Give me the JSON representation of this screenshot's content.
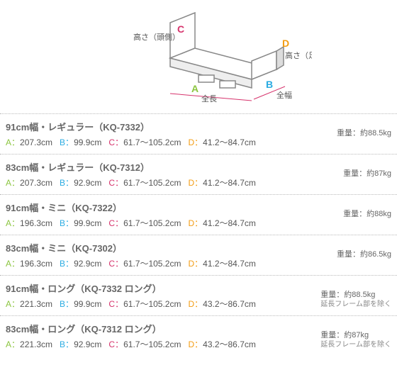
{
  "diagram": {
    "labels": {
      "A": "全長",
      "B": "全幅",
      "C": "高さ（頭側）",
      "D": "高さ（足側）"
    },
    "colors": {
      "A": "#8bc53f",
      "B": "#29abe2",
      "C": "#d6336c",
      "D": "#f39c12",
      "outline": "#888"
    }
  },
  "models": [
    {
      "title": "91cm幅・レギュラー（KQ-7332）",
      "A": "207.3cm",
      "B": "99.9cm",
      "C": "61.7～105.2cm",
      "D": "41.2～84.7cm",
      "weight": "重量：約88.5kg",
      "note": ""
    },
    {
      "title": "83cm幅・レギュラー（KQ-7312）",
      "A": "207.3cm",
      "B": "92.9cm",
      "C": "61.7～105.2cm",
      "D": "41.2～84.7cm",
      "weight": "重量：約87kg",
      "note": ""
    },
    {
      "title": "91cm幅・ミニ（KQ-7322）",
      "A": "196.3cm",
      "B": "99.9cm",
      "C": "61.7～105.2cm",
      "D": "41.2～84.7cm",
      "weight": "重量：約88kg",
      "note": ""
    },
    {
      "title": "83cm幅・ミニ（KQ-7302）",
      "A": "196.3cm",
      "B": "92.9cm",
      "C": "61.7～105.2cm",
      "D": "41.2～84.7cm",
      "weight": "重量：約86.5kg",
      "note": ""
    },
    {
      "title": "91cm幅・ロング（KQ-7332 ロング）",
      "A": "221.3cm",
      "B": "99.9cm",
      "C": "61.7～105.2cm",
      "D": "43.2～86.7cm",
      "weight": "重量：約88.5kg",
      "note": "延長フレーム部を除く"
    },
    {
      "title": "83cm幅・ロング（KQ-7312 ロング）",
      "A": "221.3cm",
      "B": "92.9cm",
      "C": "61.7～105.2cm",
      "D": "43.2～86.7cm",
      "weight": "重量：約87kg",
      "note": "延長フレーム部を除く"
    }
  ]
}
